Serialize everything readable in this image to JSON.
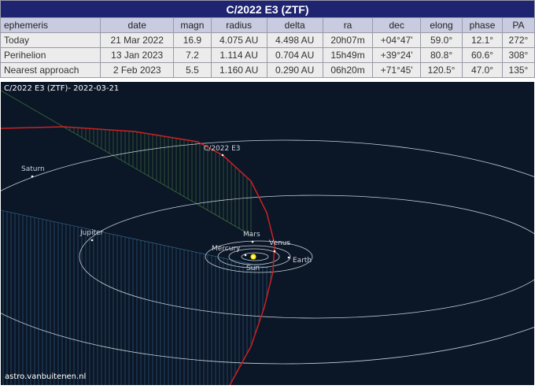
{
  "table": {
    "title": "C/2022 E3 (ZTF)",
    "headers": [
      "ephemeris",
      "date",
      "magn",
      "radius",
      "delta",
      "ra",
      "dec",
      "elong",
      "phase",
      "PA"
    ],
    "rows": [
      [
        "Today",
        "21 Mar 2022",
        "16.9",
        "4.075 AU",
        "4.498 AU",
        "20h07m",
        "+04°47'",
        "59.0°",
        "12.1°",
        "272°"
      ],
      [
        "Perihelion",
        "13 Jan 2023",
        "7.2",
        "1.114 AU",
        "0.704 AU",
        "15h49m",
        "+39°24'",
        "80.8°",
        "60.6°",
        "308°"
      ],
      [
        "Nearest approach",
        "2 Feb 2023",
        "5.5",
        "1.160 AU",
        "0.290 AU",
        "06h20m",
        "+71°45'",
        "120.5°",
        "47.0°",
        "135°"
      ]
    ]
  },
  "map": {
    "title": "C/2022 E3 (ZTF)- 2022-03-21",
    "credit": "astro.vanbuitenen.nl",
    "labels": {
      "comet": "C/2022 E3",
      "saturn": "Saturn",
      "jupiter": "Jupiter",
      "mars": "Mars",
      "venus": "Venus",
      "earth": "Earth",
      "mercury": "Mercury",
      "sun": "Sun"
    },
    "colors": {
      "background": "#0b1627",
      "comet_orbit": "#cc2222",
      "planet_orbit": "#c8d0d8",
      "above_plane": "#3c6e3a",
      "below_plane": "#2e5a7a",
      "sun": "#ffee00"
    }
  }
}
